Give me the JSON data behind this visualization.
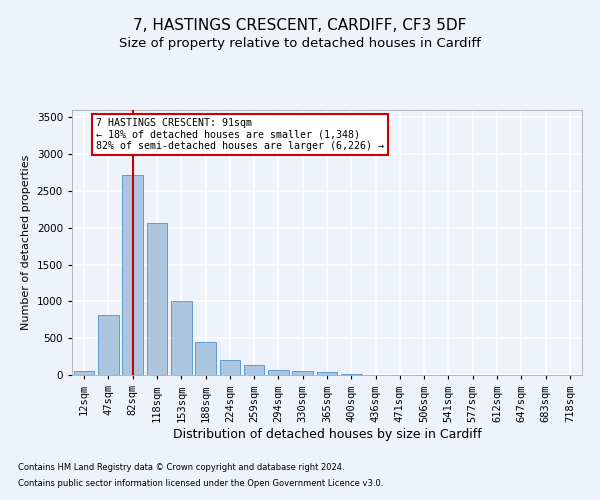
{
  "title1": "7, HASTINGS CRESCENT, CARDIFF, CF3 5DF",
  "title2": "Size of property relative to detached houses in Cardiff",
  "xlabel": "Distribution of detached houses by size in Cardiff",
  "ylabel": "Number of detached properties",
  "footnote1": "Contains HM Land Registry data © Crown copyright and database right 2024.",
  "footnote2": "Contains public sector information licensed under the Open Government Licence v3.0.",
  "categories": [
    "12sqm",
    "47sqm",
    "82sqm",
    "118sqm",
    "153sqm",
    "188sqm",
    "224sqm",
    "259sqm",
    "294sqm",
    "330sqm",
    "365sqm",
    "400sqm",
    "436sqm",
    "471sqm",
    "506sqm",
    "541sqm",
    "577sqm",
    "612sqm",
    "647sqm",
    "683sqm",
    "718sqm"
  ],
  "values": [
    60,
    820,
    2720,
    2060,
    1000,
    450,
    200,
    140,
    70,
    55,
    45,
    20,
    5,
    5,
    5,
    0,
    0,
    0,
    0,
    0,
    0
  ],
  "bar_color": "#adc6e0",
  "bar_edge_color": "#5b9bd5",
  "vline_x": 2,
  "vline_color": "#cc0000",
  "annotation_text": "7 HASTINGS CRESCENT: 91sqm\n← 18% of detached houses are smaller (1,348)\n82% of semi-detached houses are larger (6,226) →",
  "annotation_box_color": "#ffffff",
  "annotation_box_edge": "#cc0000",
  "ylim": [
    0,
    3600
  ],
  "yticks": [
    0,
    500,
    1000,
    1500,
    2000,
    2500,
    3000,
    3500
  ],
  "bg_color": "#eef3fb",
  "plot_bg_color": "#eef3fb",
  "grid_color": "#ffffff",
  "title1_fontsize": 11,
  "title2_fontsize": 9.5,
  "xlabel_fontsize": 9,
  "ylabel_fontsize": 8,
  "tick_fontsize": 7.5,
  "footnote_fontsize": 6
}
